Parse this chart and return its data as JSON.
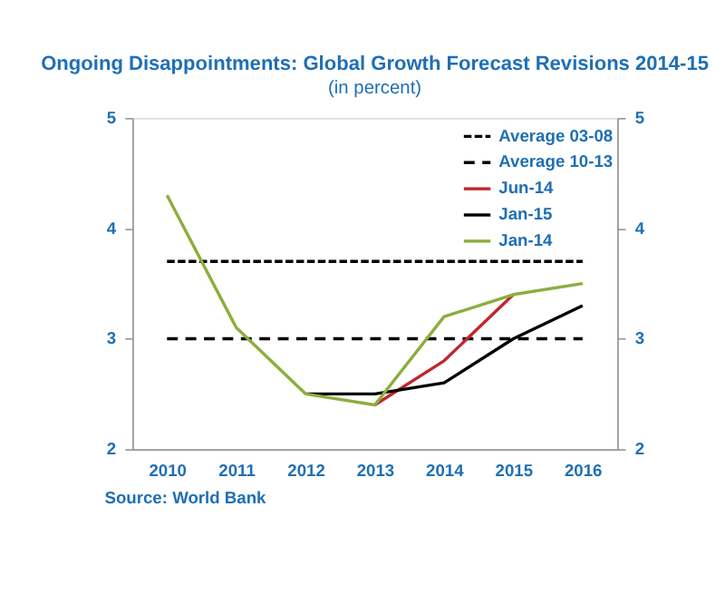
{
  "chart_data": {
    "type": "line",
    "title": "Ongoing Disappointments: Global Growth Forecast Revisions 2014-15",
    "subtitle": "(in percent)",
    "categories": [
      "2010",
      "2011",
      "2012",
      "2013",
      "2014",
      "2015",
      "2016"
    ],
    "series": [
      {
        "name": "Average 03-08",
        "color": "#000000",
        "line_style": "dotted",
        "values": [
          3.7,
          3.7,
          3.7,
          3.7,
          3.7,
          3.7,
          3.7
        ]
      },
      {
        "name": "Average 10-13",
        "color": "#000000",
        "line_style": "dashed",
        "values": [
          3.0,
          3.0,
          3.0,
          3.0,
          3.0,
          3.0,
          3.0
        ]
      },
      {
        "name": "Jun-14",
        "color": "#c0272d",
        "line_style": "solid",
        "values": [
          null,
          null,
          null,
          2.4,
          2.8,
          3.4,
          null
        ]
      },
      {
        "name": "Jan-15",
        "color": "#000000",
        "line_style": "solid",
        "values": [
          null,
          null,
          2.5,
          2.5,
          2.6,
          3.0,
          3.3
        ]
      },
      {
        "name": "Jan-14",
        "color": "#8cae3c",
        "line_style": "solid",
        "values": [
          4.3,
          3.1,
          2.5,
          2.4,
          3.2,
          3.4,
          3.5
        ]
      }
    ],
    "ylim": [
      2,
      5
    ],
    "yticks": [
      2,
      3,
      4,
      5
    ],
    "y2lim": [
      2,
      5
    ],
    "y2ticks": [
      2,
      3,
      4,
      5
    ],
    "grid": false,
    "legend": "top right",
    "marker": "none",
    "annotations": [
      "Source: World Bank"
    ]
  }
}
